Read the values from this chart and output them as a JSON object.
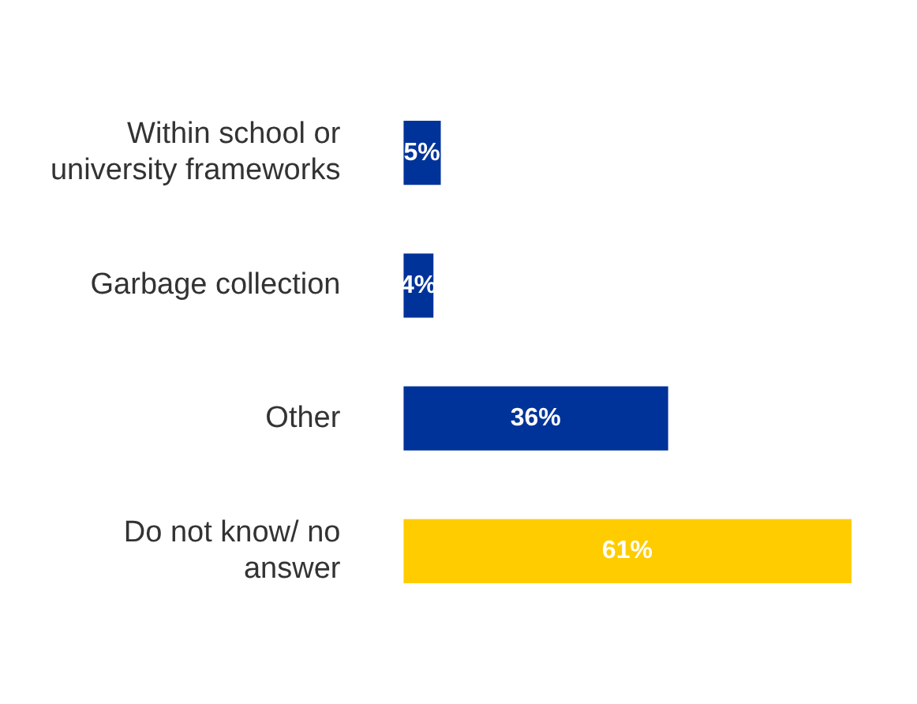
{
  "chart_data": {
    "type": "bar",
    "orientation": "horizontal",
    "categories": [
      "Within school or university frameworks",
      "Garbage collection",
      "Other",
      "Do not know/ no answer"
    ],
    "values": [
      5,
      4,
      36,
      61
    ],
    "value_labels": [
      "5%",
      "4%",
      "36%",
      "61%"
    ],
    "colors": [
      "#003399",
      "#003399",
      "#003399",
      "#ffcc00"
    ],
    "legend": false,
    "tick_labels": "y"
  }
}
